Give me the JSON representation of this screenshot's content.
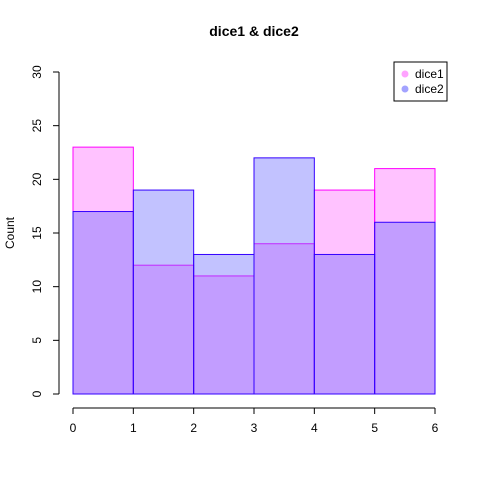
{
  "chart_data": {
    "type": "bar",
    "title": "dice1 & dice2",
    "xlabel": "",
    "ylabel": "Count",
    "x_edges": [
      0,
      1,
      2,
      3,
      4,
      5,
      6
    ],
    "x_ticks": [
      0,
      1,
      2,
      3,
      4,
      5,
      6
    ],
    "y_ticks": [
      0,
      5,
      10,
      15,
      20,
      25,
      30
    ],
    "xlim": [
      0,
      6
    ],
    "ylim": [
      0,
      30
    ],
    "grid": false,
    "legend_position": "top-right",
    "series": [
      {
        "name": "dice1",
        "values": [
          23,
          12,
          11,
          14,
          19,
          21
        ],
        "fill": "#ff66ff",
        "fill_opacity": 0.4,
        "stroke": "#ff00ff"
      },
      {
        "name": "dice2",
        "values": [
          17,
          19,
          13,
          22,
          13,
          16
        ],
        "fill": "#6666ff",
        "fill_opacity": 0.4,
        "stroke": "#3300ff"
      }
    ]
  }
}
